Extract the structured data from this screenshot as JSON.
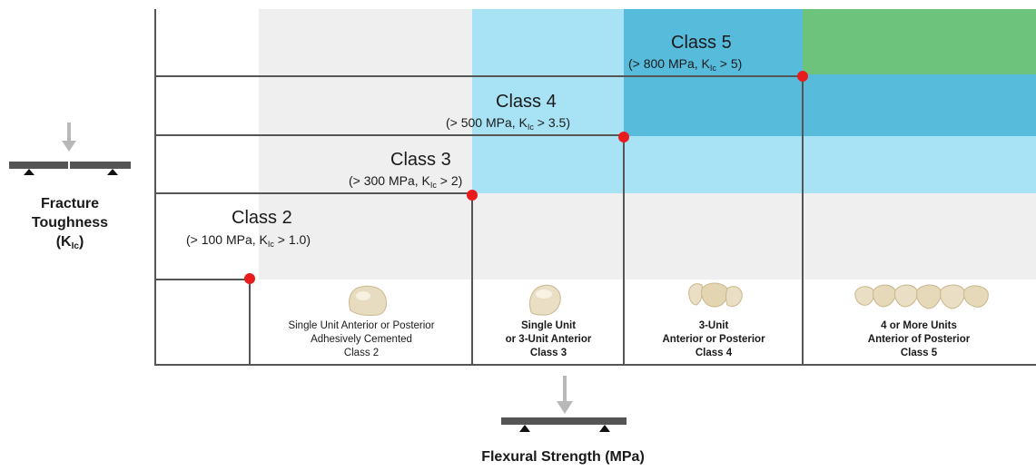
{
  "y_axis": {
    "label_line1": "Fracture",
    "label_line2": "Toughness",
    "label_symbol_main": "K",
    "label_symbol_sub": "Ic"
  },
  "x_axis": {
    "label": "Flexural Strength (MPa)"
  },
  "classes": [
    {
      "title": "Class 2",
      "sub_prefix": "(> 100 MPa, K",
      "sub_index": "Ic",
      "sub_suffix": " > 1.0)"
    },
    {
      "title": "Class 3",
      "sub_prefix": "(> 300 MPa, K",
      "sub_index": "Ic",
      "sub_suffix": " > 2)"
    },
    {
      "title": "Class 4",
      "sub_prefix": "(> 500 MPa, K",
      "sub_index": "Ic",
      "sub_suffix": " > 3.5)"
    },
    {
      "title": "Class 5",
      "sub_prefix": "(> 800 MPa, K",
      "sub_index": "Ic",
      "sub_suffix": " > 5)"
    }
  ],
  "categories": [
    {
      "line1": "Single Unit Anterior or Posterior",
      "line2": "Adhesively Cemented",
      "line3": "Class 2"
    },
    {
      "line1": "Single Unit",
      "line2": "or 3-Unit Anterior",
      "line3": "Class 3"
    },
    {
      "line1": "3-Unit",
      "line2": "Anterior or Posterior",
      "line3": "Class 4"
    },
    {
      "line1": "4 or More Units",
      "line2": "Anterior of Posterior",
      "line3": "Class 5"
    }
  ],
  "colors": {
    "band_gray": "#efefef",
    "band_light_blue": "#a8e3f5",
    "band_mid_blue": "#57bcdc",
    "band_green": "#6ec37c",
    "threshold_dot": "#e81c1c",
    "axis_line": "#555555"
  }
}
